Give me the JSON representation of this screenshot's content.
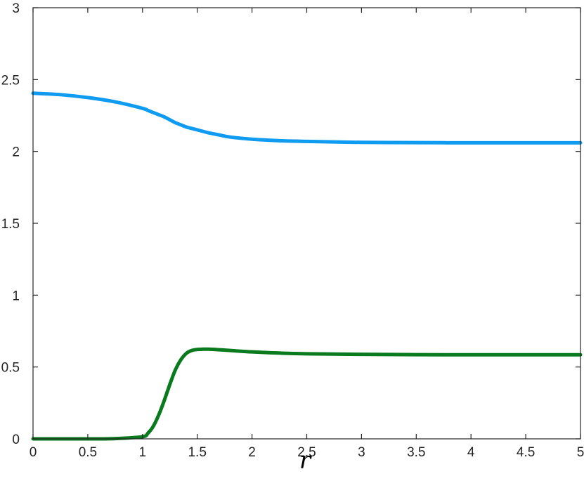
{
  "chart_data": {
    "type": "line",
    "title": "",
    "xlabel": "r",
    "ylabel": "",
    "xlim": [
      0,
      5
    ],
    "ylim": [
      0,
      3
    ],
    "grid": false,
    "x_ticks": [
      "0",
      "0.5",
      "1",
      "1.5",
      "2",
      "2.5",
      "3",
      "3.5",
      "4",
      "4.5",
      "5"
    ],
    "y_ticks": [
      "0",
      "0.5",
      "1",
      "1.5",
      "2",
      "2.5",
      "3"
    ],
    "x": [
      0,
      0.25,
      0.5,
      0.75,
      1.0,
      1.05,
      1.1,
      1.15,
      1.2,
      1.25,
      1.3,
      1.35,
      1.4,
      1.45,
      1.5,
      1.55,
      1.6,
      1.7,
      1.8,
      2.0,
      2.25,
      2.5,
      3.0,
      3.5,
      4.0,
      4.5,
      5.0
    ],
    "series": [
      {
        "color": "#0f9bf0",
        "values": [
          2.405,
          2.395,
          2.375,
          2.345,
          2.3,
          2.285,
          2.27,
          2.255,
          2.24,
          2.22,
          2.2,
          2.185,
          2.17,
          2.16,
          2.15,
          2.14,
          2.13,
          2.115,
          2.1,
          2.085,
          2.075,
          2.07,
          2.063,
          2.061,
          2.06,
          2.06,
          2.06
        ]
      },
      {
        "color": "#097a1d",
        "values": [
          0.0,
          0.0,
          0.0,
          0.002,
          0.015,
          0.04,
          0.09,
          0.17,
          0.27,
          0.38,
          0.48,
          0.55,
          0.595,
          0.615,
          0.622,
          0.624,
          0.624,
          0.62,
          0.615,
          0.605,
          0.597,
          0.592,
          0.588,
          0.586,
          0.585,
          0.585,
          0.585
        ]
      }
    ]
  }
}
